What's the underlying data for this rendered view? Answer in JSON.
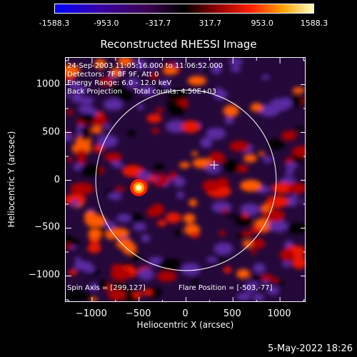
{
  "colorbar": {
    "ticks": [
      "-1588.3",
      "-953.0",
      "-317.7",
      "317.7",
      "953.0",
      "1588.3"
    ],
    "tick_values": [
      -1588.3,
      -953.0,
      -317.7,
      317.7,
      953.0,
      1588.3
    ],
    "min": -1588.3,
    "max": 1588.3
  },
  "chart_data": {
    "type": "heatmap",
    "title": "Reconstructed RHESSI Image",
    "xlabel": "Heliocentric X (arcsec)",
    "ylabel": "Heliocentric Y (arcsec)",
    "xlim": [
      -1280,
      1280
    ],
    "ylim": [
      -1280,
      1280
    ],
    "xticks": [
      -1000,
      -500,
      0,
      500,
      1000
    ],
    "yticks": [
      -1000,
      -500,
      0,
      500,
      1000
    ],
    "xtick_labels": [
      "−1000",
      "−500",
      "0",
      "500",
      "1000"
    ],
    "ytick_labels": [
      "−1000",
      "−500",
      "0",
      "500",
      "1000"
    ],
    "solar_limb_radius": 960,
    "sun_center_marker": [
      300,
      160
    ],
    "bright_source": [
      -503,
      -77
    ],
    "info_lines": [
      "24-Sep-2003 11:05:16.000 to 11:06:52.000",
      "Detectors: 7F 8F 9F, Att 0",
      "Energy Range: 6.0 - 12.0 keV",
      "Back Projection     Total counts: 4.50E+03"
    ],
    "spin_axis": "Spin Axis = [299,127]",
    "flare_position": "Flare Position = [-503,-77]"
  },
  "colors": {
    "limb": "#ffffff",
    "background": "#000000"
  },
  "footer": {
    "timestamp": "5-May-2022 18:26"
  }
}
